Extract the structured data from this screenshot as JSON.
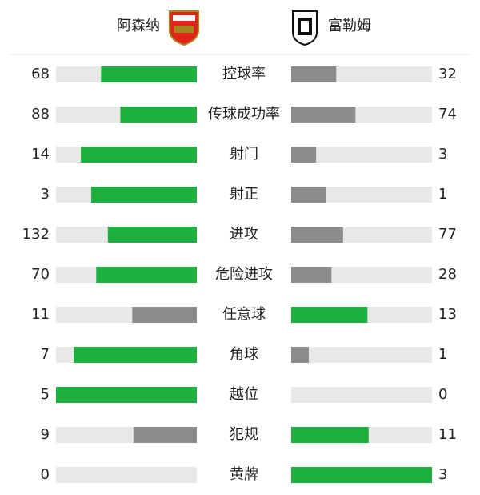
{
  "header": {
    "home_team": "阿森纳",
    "away_team": "富勒姆"
  },
  "colors": {
    "higher": "#1db03f",
    "lower": "#8c8c8c",
    "track": "#e8e8e8"
  },
  "stats": [
    {
      "label": "控球率",
      "home": 68,
      "away": 32
    },
    {
      "label": "传球成功率",
      "home": 88,
      "away": 74
    },
    {
      "label": "射门",
      "home": 14,
      "away": 3
    },
    {
      "label": "射正",
      "home": 3,
      "away": 1
    },
    {
      "label": "进攻",
      "home": 132,
      "away": 77
    },
    {
      "label": "危险进攻",
      "home": 70,
      "away": 28
    },
    {
      "label": "任意球",
      "home": 11,
      "away": 13
    },
    {
      "label": "角球",
      "home": 7,
      "away": 1
    },
    {
      "label": "越位",
      "home": 5,
      "away": 0
    },
    {
      "label": "犯规",
      "home": 9,
      "away": 11
    },
    {
      "label": "黄牌",
      "home": 0,
      "away": 3
    }
  ]
}
